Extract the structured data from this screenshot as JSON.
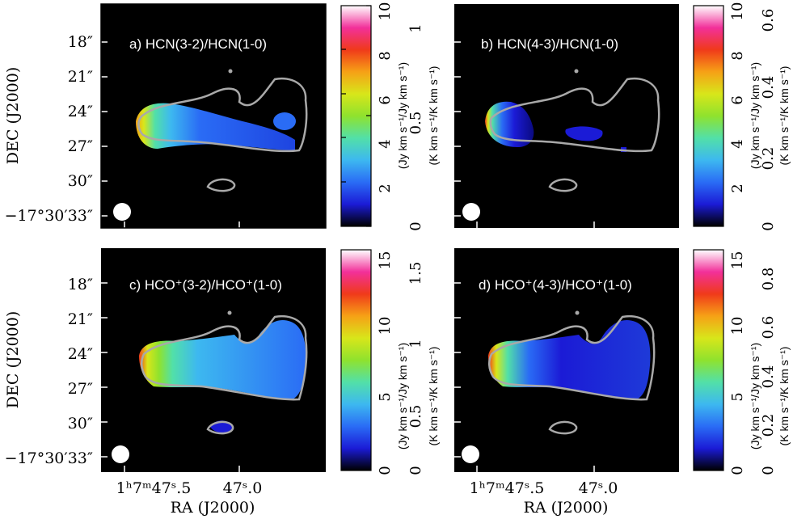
{
  "figure": {
    "ylabel": "DEC (J2000)",
    "xlabel": "RA (J2000)",
    "dec_ticks": [
      "18″",
      "21″",
      "24″",
      "27″",
      "30″",
      "−17°30′33″"
    ],
    "dec_ticks_bottom": [
      "18″",
      "21″",
      "24″",
      "27″",
      "30″",
      "−17°30′33″"
    ],
    "ra_tick_left": "1ʰ7ᵐ47ˢ.5",
    "ra_tick_right": "47ˢ.0",
    "ra_tick_left_2": "1ʰ7ᵐ47ˢ.5",
    "ra_tick_right_2": "47ˢ.0"
  },
  "panels": [
    {
      "label": "a) HCN(3-2)/HCN(1-0)",
      "cbar_left_label": "(Jy km s⁻¹/Jy km s⁻¹)",
      "cbar_right_label": "(K km s⁻¹/K km s⁻¹)",
      "cbar_left_ticks": [
        "2",
        "4",
        "6",
        "8",
        "10"
      ],
      "cbar_right_ticks": [
        "0",
        "0.5",
        "1"
      ]
    },
    {
      "label": "b) HCN(4-3)/HCN(1-0)",
      "cbar_left_label": "(Jy km s⁻¹/Jy km s⁻¹)",
      "cbar_right_label": "(K km s⁻¹/K km s⁻¹)",
      "cbar_left_ticks": [
        "2",
        "4",
        "6",
        "8",
        "10"
      ],
      "cbar_right_ticks": [
        "0",
        "0.2",
        "0.4",
        "0.6"
      ]
    },
    {
      "label": "c) HCO⁺(3-2)/HCO⁺(1-0)",
      "cbar_left_label": "(Jy km s⁻¹/Jy km s⁻¹)",
      "cbar_right_label": "(K km s⁻¹/K km s⁻¹)",
      "cbar_left_ticks": [
        "0",
        "5",
        "10",
        "15"
      ],
      "cbar_right_ticks": [
        "0",
        "0.5",
        "1",
        "1.5"
      ]
    },
    {
      "label": "d) HCO⁺(4-3)/HCO⁺(1-0)",
      "cbar_left_label": "(Jy km s⁻¹/Jy km s⁻¹)",
      "cbar_right_label": "(K km s⁻¹/K km s⁻¹)",
      "cbar_left_ticks": [
        "0",
        "5",
        "10",
        "15"
      ],
      "cbar_right_ticks": [
        "0",
        "0.2",
        "0.4",
        "0.6",
        "0.8"
      ]
    }
  ],
  "colors": {
    "background": "#000000",
    "contour": "#a9a9a9",
    "colormap": [
      "#000000",
      "#1b1bd6",
      "#2a6cf5",
      "#3db8f0",
      "#52e0a8",
      "#8fe22e",
      "#d8e61a",
      "#f6a116",
      "#f03a1a",
      "#f2309a",
      "#ffffff"
    ]
  }
}
